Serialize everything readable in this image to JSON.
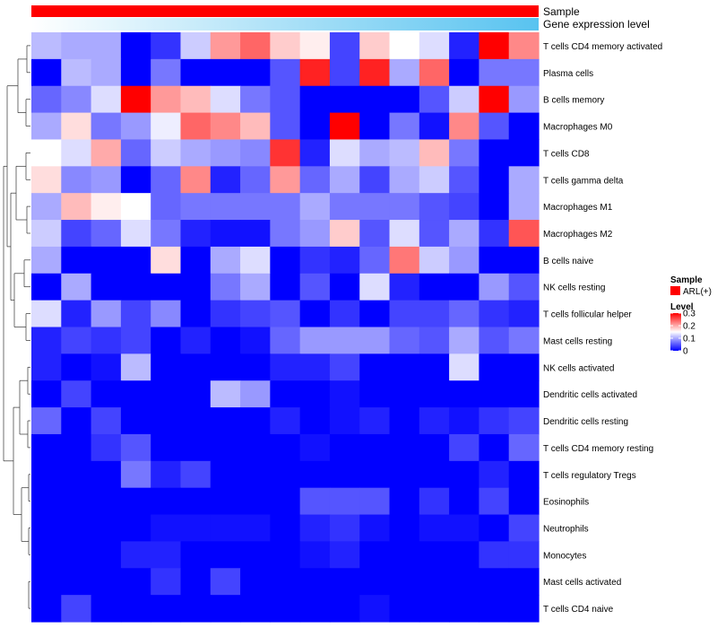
{
  "chart_data": {
    "type": "heatmap",
    "annotation_tracks": [
      {
        "name": "Sample",
        "color": "#ff0000"
      },
      {
        "name": "Gene expression level",
        "gradient": [
          "#ffffff",
          "#58c3f0"
        ]
      }
    ],
    "legend": {
      "sample_title": "Sample",
      "sample_items": [
        {
          "label": "ARL(+)",
          "color": "#ff0000"
        }
      ],
      "level_title": "Level",
      "level_ticks": [
        "0.3",
        "0.2",
        "0.1",
        "0"
      ],
      "level_range": [
        0,
        0.3
      ],
      "colors": {
        "low": "#0000ff",
        "mid": "#ffffff",
        "high": "#ff0000"
      }
    },
    "row_labels": [
      "T cells CD4 memory activated",
      "Plasma cells",
      "B cells memory",
      "Macrophages M0",
      "T cells CD8",
      "T cells gamma delta",
      "Macrophages M1",
      "Macrophages M2",
      "B cells naive",
      "NK cells resting",
      "T cells follicular helper",
      "Mast cells resting",
      "NK cells activated",
      "Dendritic cells activated",
      "Dendritic cells resting",
      "T cells CD4 memory resting",
      "T cells regulatory  Tregs",
      "Eosinophils",
      "Neutrophils",
      "Monocytes",
      "Mast cells activated",
      "T cells CD4 naive"
    ],
    "values": [
      [
        0.11,
        0.1,
        0.1,
        0.0,
        0.03,
        0.12,
        0.21,
        0.24,
        0.18,
        0.16,
        0.04,
        0.18,
        0.15,
        0.13,
        0.02,
        0.3,
        0.22
      ],
      [
        0.0,
        0.11,
        0.1,
        0.0,
        0.07,
        0.0,
        0.0,
        0.0,
        0.05,
        0.28,
        0.04,
        0.28,
        0.1,
        0.24,
        0.0,
        0.07,
        0.07
      ],
      [
        0.06,
        0.08,
        0.13,
        0.3,
        0.21,
        0.19,
        0.13,
        0.07,
        0.05,
        0.0,
        0.0,
        0.0,
        0.0,
        0.05,
        0.12,
        0.3,
        0.09
      ],
      [
        0.1,
        0.17,
        0.07,
        0.09,
        0.14,
        0.24,
        0.22,
        0.19,
        0.05,
        0.0,
        0.3,
        0.0,
        0.07,
        0.01,
        0.22,
        0.05,
        0.0
      ],
      [
        0.15,
        0.13,
        0.2,
        0.06,
        0.12,
        0.1,
        0.09,
        0.08,
        0.27,
        0.02,
        0.13,
        0.1,
        0.11,
        0.19,
        0.07,
        0.0,
        0.0
      ],
      [
        0.17,
        0.08,
        0.09,
        0.0,
        0.06,
        0.22,
        0.02,
        0.06,
        0.21,
        0.06,
        0.1,
        0.04,
        0.1,
        0.12,
        0.05,
        0.0,
        0.1
      ],
      [
        0.1,
        0.19,
        0.16,
        0.15,
        0.06,
        0.07,
        0.07,
        0.07,
        0.07,
        0.1,
        0.07,
        0.07,
        0.07,
        0.05,
        0.04,
        0.0,
        0.1
      ],
      [
        0.12,
        0.04,
        0.06,
        0.13,
        0.07,
        0.02,
        0.01,
        0.01,
        0.07,
        0.09,
        0.18,
        0.05,
        0.13,
        0.05,
        0.1,
        0.03,
        0.25
      ],
      [
        0.1,
        0.0,
        0.0,
        0.0,
        0.17,
        0.0,
        0.1,
        0.13,
        0.0,
        0.03,
        0.02,
        0.06,
        0.23,
        0.12,
        0.09,
        0.0,
        0.0
      ],
      [
        0.0,
        0.1,
        0.0,
        0.0,
        0.0,
        0.0,
        0.07,
        0.1,
        0.0,
        0.05,
        0.0,
        0.13,
        0.02,
        0.0,
        0.0,
        0.09,
        0.05
      ],
      [
        0.13,
        0.02,
        0.09,
        0.04,
        0.08,
        0.0,
        0.03,
        0.04,
        0.05,
        0.0,
        0.03,
        0.0,
        0.04,
        0.04,
        0.06,
        0.03,
        0.02
      ],
      [
        0.02,
        0.04,
        0.03,
        0.04,
        0.0,
        0.02,
        0.0,
        0.01,
        0.06,
        0.09,
        0.09,
        0.09,
        0.06,
        0.05,
        0.1,
        0.05,
        0.07
      ],
      [
        0.02,
        0.0,
        0.01,
        0.11,
        0.0,
        0.0,
        0.0,
        0.0,
        0.02,
        0.02,
        0.04,
        0.0,
        0.0,
        0.0,
        0.13,
        0.0,
        0.0
      ],
      [
        0.0,
        0.04,
        0.0,
        0.0,
        0.0,
        0.0,
        0.11,
        0.09,
        0.0,
        0.0,
        0.01,
        0.0,
        0.0,
        0.0,
        0.0,
        0.0,
        0.0
      ],
      [
        0.06,
        0.0,
        0.04,
        0.0,
        0.0,
        0.0,
        0.0,
        0.0,
        0.02,
        0.0,
        0.01,
        0.02,
        0.0,
        0.02,
        0.01,
        0.03,
        0.04
      ],
      [
        0.0,
        0.0,
        0.03,
        0.05,
        0.0,
        0.0,
        0.0,
        0.0,
        0.0,
        0.01,
        0.0,
        0.0,
        0.0,
        0.0,
        0.04,
        0.0,
        0.06
      ],
      [
        0.0,
        0.0,
        0.0,
        0.07,
        0.02,
        0.04,
        0.0,
        0.0,
        0.0,
        0.0,
        0.0,
        0.0,
        0.0,
        0.0,
        0.0,
        0.02,
        0.0
      ],
      [
        0.0,
        0.0,
        0.0,
        0.0,
        0.0,
        0.0,
        0.0,
        0.0,
        0.0,
        0.05,
        0.05,
        0.05,
        0.0,
        0.03,
        0.0,
        0.04,
        0.0
      ],
      [
        0.0,
        0.0,
        0.0,
        0.0,
        0.01,
        0.01,
        0.01,
        0.01,
        0.0,
        0.02,
        0.03,
        0.01,
        0.0,
        0.01,
        0.01,
        0.0,
        0.04
      ],
      [
        0.0,
        0.0,
        0.0,
        0.02,
        0.02,
        0.0,
        0.0,
        0.0,
        0.0,
        0.01,
        0.02,
        0.0,
        0.0,
        0.0,
        0.0,
        0.03,
        0.03
      ],
      [
        0.0,
        0.0,
        0.0,
        0.0,
        0.03,
        0.0,
        0.04,
        0.0,
        0.0,
        0.0,
        0.0,
        0.0,
        0.0,
        0.0,
        0.0,
        0.0,
        0.0
      ],
      [
        0.0,
        0.04,
        0.0,
        0.0,
        0.0,
        0.0,
        0.0,
        0.0,
        0.0,
        0.0,
        0.0,
        0.01,
        0.0,
        0.0,
        0.0,
        0.0,
        0.0
      ]
    ]
  }
}
